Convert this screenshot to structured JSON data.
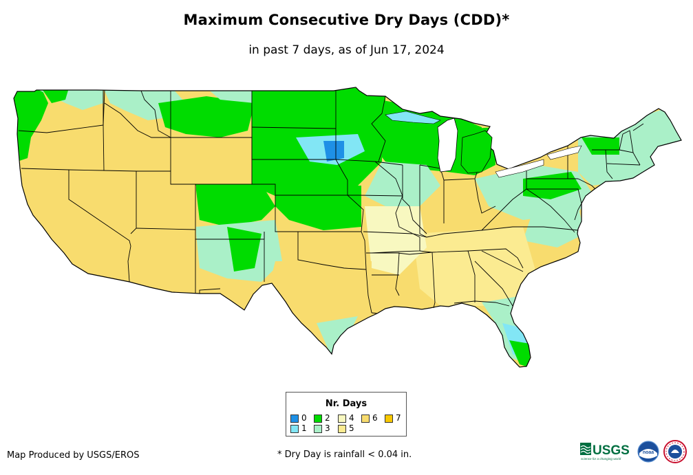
{
  "header": {
    "title": "Maximum Consecutive Dry Days (CDD)*",
    "subtitle": "in past 7 days, as of Jun 17, 2024"
  },
  "legend": {
    "title": "Nr. Days",
    "items": [
      {
        "label": "0",
        "color": "#1e90e6"
      },
      {
        "label": "1",
        "color": "#82e6f5"
      },
      {
        "label": "2",
        "color": "#00dc00"
      },
      {
        "label": "3",
        "color": "#aaf0c8"
      },
      {
        "label": "4",
        "color": "#f8f8c0"
      },
      {
        "label": "5",
        "color": "#fbeb91"
      },
      {
        "label": "6",
        "color": "#f8dc6e"
      },
      {
        "label": "7",
        "color": "#f8c800"
      }
    ]
  },
  "map": {
    "region": "Contiguous United States",
    "ocean_color": "#ffffff",
    "border_color": "#000000"
  },
  "footer": {
    "credit": "Map Produced by USGS/EROS",
    "footnote": "* Dry Day is rainfall < 0.04 in.",
    "logos": {
      "usgs_text": "USGS",
      "usgs_tagline": "science for a changing world",
      "noaa_text": "noaa"
    }
  }
}
